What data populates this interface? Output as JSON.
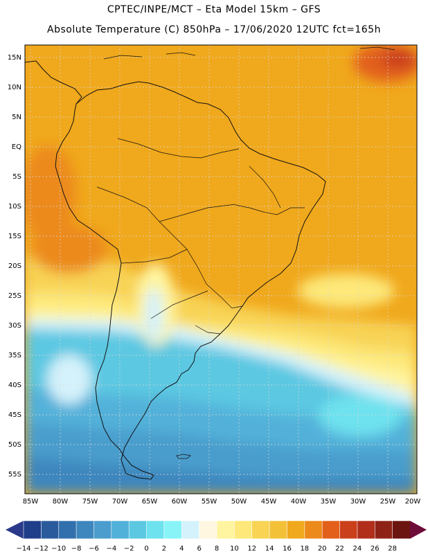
{
  "header": {
    "line1": "CPTEC/INPE/MCT –  Eta Model 15km – GFS",
    "line2": "Absolute Temperature (C) 850hPa – 17/06/2020 12UTC fct=165h"
  },
  "map": {
    "lat_labels": [
      "15N",
      "10N",
      "5N",
      "EQ",
      "5S",
      "10S",
      "15S",
      "20S",
      "25S",
      "30S",
      "35S",
      "40S",
      "45S",
      "50S",
      "55S"
    ],
    "lon_labels": [
      "85W",
      "80W",
      "75W",
      "70W",
      "65W",
      "60W",
      "55W",
      "50W",
      "45W",
      "40W",
      "35W",
      "30W",
      "25W",
      "20W"
    ]
  },
  "colorbar": {
    "tick_labels": [
      "-14",
      "-12",
      "-10",
      "-8",
      "-6",
      "-4",
      "-2",
      "0",
      "2",
      "4",
      "6",
      "8",
      "10",
      "12",
      "14",
      "16",
      "18",
      "20",
      "22",
      "24",
      "26",
      "28"
    ],
    "colors": [
      "#1f3f8a",
      "#2a5a9c",
      "#3270ad",
      "#3d86be",
      "#4a9dcc",
      "#52b1d9",
      "#5cc8e2",
      "#6ee2ee",
      "#88f4f8",
      "#d4f2fb",
      "#fff7e0",
      "#fff5a0",
      "#fde879",
      "#f8d354",
      "#f3c138",
      "#f0a81c",
      "#ec8a1c",
      "#e2601a",
      "#ca401a",
      "#b02e1a",
      "#8e2217",
      "#6c1410"
    ],
    "under_color": "#2a3a8a",
    "over_color": "#6e0c3a"
  }
}
